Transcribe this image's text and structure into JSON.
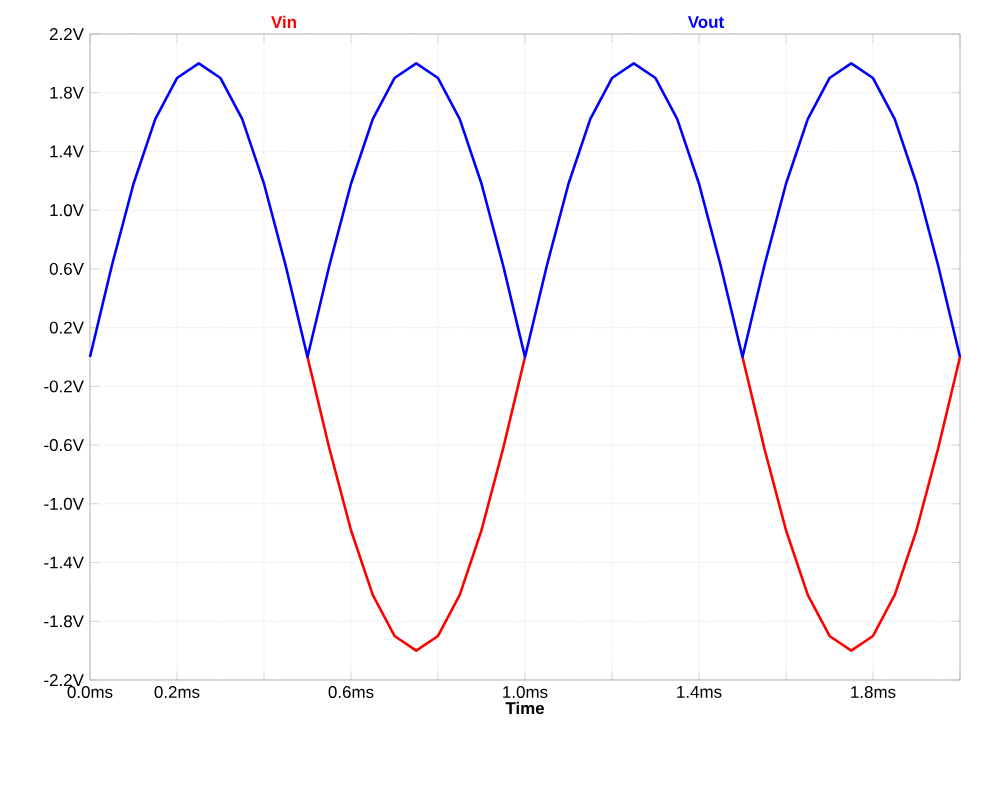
{
  "chart_data": {
    "type": "line",
    "xlabel": "Time",
    "grid": true,
    "marker": "none",
    "line_style": "solid",
    "xlim": [
      0,
      2
    ],
    "ylim": [
      -2.2,
      2.2
    ],
    "xticks": [
      {
        "value": 0,
        "label": "0.0ms"
      },
      {
        "value": 0.2,
        "label": "0.2ms"
      },
      {
        "value": 0.4,
        "label": null
      },
      {
        "value": 0.6,
        "label": "0.6ms"
      },
      {
        "value": 0.8,
        "label": null
      },
      {
        "value": 1.0,
        "label": "1.0ms"
      },
      {
        "value": 1.2,
        "label": null
      },
      {
        "value": 1.4,
        "label": "1.4ms"
      },
      {
        "value": 1.6,
        "label": null
      },
      {
        "value": 1.8,
        "label": "1.8ms"
      },
      {
        "value": 2.0,
        "label": null
      }
    ],
    "yticks": [
      {
        "value": -2.2,
        "label": "-2.2V"
      },
      {
        "value": -1.8,
        "label": "-1.8V"
      },
      {
        "value": -1.4,
        "label": "-1.4V"
      },
      {
        "value": -1.0,
        "label": "-1.0V"
      },
      {
        "value": -0.6,
        "label": "-0.6V"
      },
      {
        "value": -0.2,
        "label": "-0.2V"
      },
      {
        "value": 0.2,
        "label": "0.2V"
      },
      {
        "value": 0.6,
        "label": "0.6V"
      },
      {
        "value": 1.0,
        "label": "1.0V"
      },
      {
        "value": 1.4,
        "label": "1.4V"
      },
      {
        "value": 1.8,
        "label": "1.8V"
      },
      {
        "value": 2.2,
        "label": "2.2V"
      }
    ],
    "x": [
      0,
      0.05,
      0.1,
      0.15,
      0.2,
      0.25,
      0.3,
      0.35,
      0.4,
      0.45,
      0.5,
      0.55,
      0.6,
      0.65,
      0.7,
      0.75,
      0.8,
      0.85,
      0.9,
      0.95,
      1.0,
      1.05,
      1.1,
      1.15,
      1.2,
      1.25,
      1.3,
      1.35,
      1.4,
      1.45,
      1.5,
      1.55,
      1.6,
      1.65,
      1.7,
      1.75,
      1.8,
      1.85,
      1.9,
      1.95,
      2.0
    ],
    "series": [
      {
        "name": "Vin",
        "color": "#ff0000",
        "values": [
          null,
          null,
          null,
          null,
          null,
          null,
          null,
          null,
          null,
          null,
          0,
          -0.62,
          -1.18,
          -1.62,
          -1.9,
          -2.0,
          -1.9,
          -1.62,
          -1.18,
          -0.62,
          0,
          null,
          null,
          null,
          null,
          null,
          null,
          null,
          null,
          null,
          0,
          -0.62,
          -1.18,
          -1.62,
          -1.9,
          -2.0,
          -1.9,
          -1.62,
          -1.18,
          -0.62,
          0
        ]
      },
      {
        "name": "Vout",
        "color": "#0000ff",
        "values": [
          0,
          0.62,
          1.18,
          1.62,
          1.9,
          2.0,
          1.9,
          1.62,
          1.18,
          0.62,
          0,
          0.62,
          1.18,
          1.62,
          1.9,
          2.0,
          1.9,
          1.62,
          1.18,
          0.62,
          0,
          0.62,
          1.18,
          1.62,
          1.9,
          2.0,
          1.9,
          1.62,
          1.18,
          0.62,
          0,
          0.62,
          1.18,
          1.62,
          1.9,
          2.0,
          1.9,
          1.62,
          1.18,
          0.62,
          0
        ]
      }
    ]
  }
}
